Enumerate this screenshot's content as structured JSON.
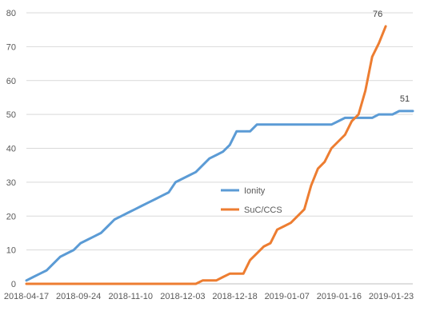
{
  "chart_data": {
    "type": "line",
    "title": "",
    "xlabel": "",
    "ylabel": "",
    "ylim": [
      0,
      80
    ],
    "yticks": [
      0,
      10,
      20,
      30,
      40,
      50,
      60,
      70,
      80
    ],
    "x_tick_labels": [
      "2018-04-17",
      "2018-09-24",
      "2018-11-10",
      "2018-12-03",
      "2018-12-18",
      "2019-01-07",
      "2019-01-16",
      "2019-01-23"
    ],
    "grid": "horizontal",
    "legend_position": "center",
    "series": [
      {
        "name": "Ionity",
        "color": "#5B9BD5",
        "values": [
          1,
          2,
          3,
          4,
          6,
          8,
          9,
          10,
          12,
          13,
          14,
          15,
          17,
          19,
          20,
          21,
          22,
          23,
          24,
          25,
          26,
          27,
          30,
          31,
          32,
          33,
          35,
          37,
          38,
          39,
          41,
          45,
          45,
          45,
          47,
          47,
          47,
          47,
          47,
          47,
          47,
          47,
          47,
          47,
          47,
          47,
          48,
          49,
          49,
          49,
          49,
          49,
          50,
          50,
          50,
          51,
          51,
          51
        ],
        "end_label": "51"
      },
      {
        "name": "SuC/CCS",
        "color": "#ED7D31",
        "values": [
          0,
          0,
          0,
          0,
          0,
          0,
          0,
          0,
          0,
          0,
          0,
          0,
          0,
          0,
          0,
          0,
          0,
          0,
          0,
          0,
          0,
          0,
          0,
          0,
          0,
          0,
          1,
          1,
          1,
          2,
          3,
          3,
          3,
          7,
          9,
          11,
          12,
          16,
          17,
          18,
          20,
          22,
          29,
          34,
          36,
          40,
          42,
          44,
          48,
          50,
          57,
          67,
          71,
          76
        ],
        "end_label": "76"
      }
    ]
  }
}
